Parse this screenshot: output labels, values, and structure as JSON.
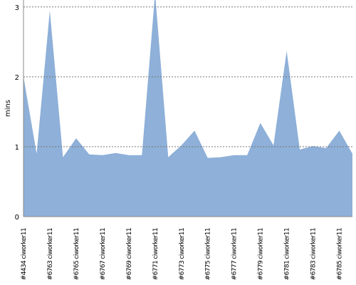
{
  "chart_data": {
    "type": "area",
    "y_label": "mins",
    "categories": [
      "#4434 ciworker11",
      null,
      "#6763 ciworker11",
      null,
      "#6765 ciworker11",
      null,
      "#6767 ciworker11",
      null,
      "#6769 ciworker11",
      null,
      "#6771 ciworker11",
      null,
      "#6773 ciworker11",
      null,
      "#6775 ciworker11",
      null,
      "#6777 ciworker11",
      null,
      "#6779 ciworker11",
      null,
      "#6781 ciworker11",
      null,
      "#6783 ciworker11",
      null,
      "#6785 ciworker11",
      null
    ],
    "values": [
      2.0,
      0.9,
      2.95,
      0.85,
      1.12,
      0.89,
      0.88,
      0.91,
      0.88,
      0.88,
      3.2,
      0.85,
      1.02,
      1.23,
      0.84,
      0.85,
      0.88,
      0.88,
      1.34,
      1.02,
      2.37,
      0.96,
      1.01,
      0.98,
      1.23,
      0.9
    ],
    "color": "#8eb0d9",
    "ylim": [
      0,
      3.1
    ],
    "yticks": [
      0,
      1,
      2,
      3
    ],
    "grid": true
  }
}
